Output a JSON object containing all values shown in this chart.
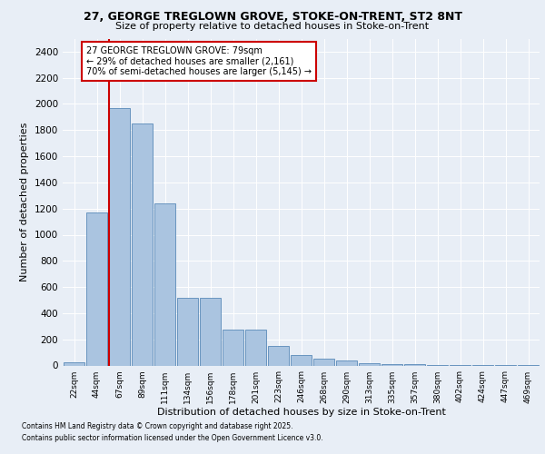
{
  "title_line1": "27, GEORGE TREGLOWN GROVE, STOKE-ON-TRENT, ST2 8NT",
  "title_line2": "Size of property relative to detached houses in Stoke-on-Trent",
  "xlabel": "Distribution of detached houses by size in Stoke-on-Trent",
  "ylabel": "Number of detached properties",
  "categories": [
    "22sqm",
    "44sqm",
    "67sqm",
    "89sqm",
    "111sqm",
    "134sqm",
    "156sqm",
    "178sqm",
    "201sqm",
    "223sqm",
    "246sqm",
    "268sqm",
    "290sqm",
    "313sqm",
    "335sqm",
    "357sqm",
    "380sqm",
    "402sqm",
    "424sqm",
    "447sqm",
    "469sqm"
  ],
  "values": [
    25,
    1170,
    1970,
    1850,
    1240,
    520,
    520,
    275,
    275,
    150,
    80,
    50,
    40,
    15,
    10,
    8,
    5,
    3,
    2,
    1,
    1
  ],
  "bar_color": "#aac4e0",
  "bar_edge_color": "#5a8ab8",
  "vline_x_idx": 2,
  "vline_color": "#cc0000",
  "annotation_text": "27 GEORGE TREGLOWN GROVE: 79sqm\n← 29% of detached houses are smaller (2,161)\n70% of semi-detached houses are larger (5,145) →",
  "annotation_box_color": "#cc0000",
  "ylim": [
    0,
    2500
  ],
  "yticks": [
    0,
    200,
    400,
    600,
    800,
    1000,
    1200,
    1400,
    1600,
    1800,
    2000,
    2200,
    2400
  ],
  "footnote1": "Contains HM Land Registry data © Crown copyright and database right 2025.",
  "footnote2": "Contains public sector information licensed under the Open Government Licence v3.0.",
  "bg_color": "#e8eef6",
  "plot_bg_color": "#e8eef6"
}
